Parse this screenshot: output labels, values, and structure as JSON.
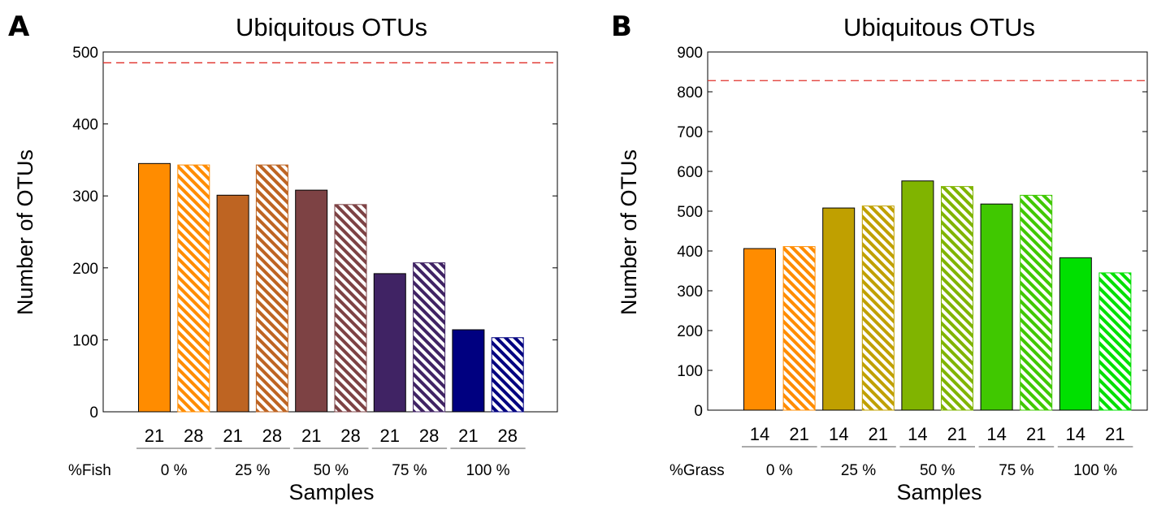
{
  "figure": {
    "pattern_colors": {
      "stroke": "#000000",
      "reference_line": "#e0302a",
      "background": "#ffffff"
    }
  },
  "chart_data": [
    {
      "panel": "A",
      "type": "bar",
      "title": "Ubiquitous OTUs",
      "xlabel": "Samples",
      "ylabel": "Number of OTUs",
      "ylim": [
        0,
        500
      ],
      "yticks": [
        0,
        100,
        200,
        300,
        400,
        500
      ],
      "reference_line": 485,
      "group_prefix": "%Fish",
      "grid": false,
      "legend": "none",
      "groups": [
        {
          "label": "0 %",
          "color": "#ff8c00",
          "bars": [
            {
              "category": "21",
              "value": 345,
              "hatched": false
            },
            {
              "category": "28",
              "value": 343,
              "hatched": true
            }
          ]
        },
        {
          "label": "25 %",
          "color": "#be6422",
          "bars": [
            {
              "category": "21",
              "value": 301,
              "hatched": false
            },
            {
              "category": "28",
              "value": 343,
              "hatched": true
            }
          ]
        },
        {
          "label": "50 %",
          "color": "#7d4244",
          "bars": [
            {
              "category": "21",
              "value": 308,
              "hatched": false
            },
            {
              "category": "28",
              "value": 288,
              "hatched": true
            }
          ]
        },
        {
          "label": "75 %",
          "color": "#402364",
          "bars": [
            {
              "category": "21",
              "value": 192,
              "hatched": false
            },
            {
              "category": "28",
              "value": 207,
              "hatched": true
            }
          ]
        },
        {
          "label": "100 %",
          "color": "#000080",
          "bars": [
            {
              "category": "21",
              "value": 114,
              "hatched": false
            },
            {
              "category": "28",
              "value": 103,
              "hatched": true
            }
          ]
        }
      ]
    },
    {
      "panel": "B",
      "type": "bar",
      "title": "Ubiquitous OTUs",
      "xlabel": "Samples",
      "ylabel": "Number of OTUs",
      "ylim": [
        0,
        900
      ],
      "yticks": [
        0,
        100,
        200,
        300,
        400,
        500,
        600,
        700,
        800,
        900
      ],
      "reference_line": 828,
      "group_prefix": "%Grass",
      "grid": false,
      "legend": "none",
      "groups": [
        {
          "label": "0 %",
          "color": "#ff8c00",
          "bars": [
            {
              "category": "14",
              "value": 406,
              "hatched": false
            },
            {
              "category": "21",
              "value": 411,
              "hatched": true
            }
          ]
        },
        {
          "label": "25 %",
          "color": "#c0a000",
          "bars": [
            {
              "category": "14",
              "value": 508,
              "hatched": false
            },
            {
              "category": "21",
              "value": 513,
              "hatched": true
            }
          ]
        },
        {
          "label": "50 %",
          "color": "#80b400",
          "bars": [
            {
              "category": "14",
              "value": 576,
              "hatched": false
            },
            {
              "category": "21",
              "value": 562,
              "hatched": true
            }
          ]
        },
        {
          "label": "75 %",
          "color": "#40c800",
          "bars": [
            {
              "category": "14",
              "value": 518,
              "hatched": false
            },
            {
              "category": "21",
              "value": 540,
              "hatched": true
            }
          ]
        },
        {
          "label": "100 %",
          "color": "#00e000",
          "bars": [
            {
              "category": "14",
              "value": 383,
              "hatched": false
            },
            {
              "category": "21",
              "value": 345,
              "hatched": true
            }
          ]
        }
      ]
    }
  ]
}
